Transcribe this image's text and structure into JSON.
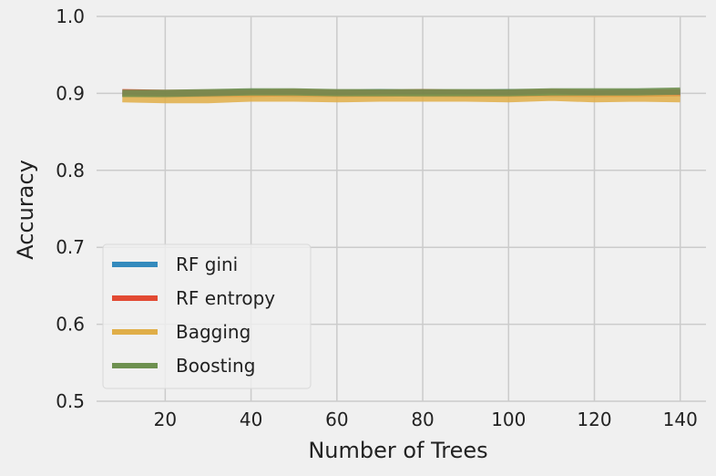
{
  "chart_data": {
    "type": "line",
    "title": "",
    "xlabel": "Number of Trees",
    "ylabel": "Accuracy",
    "xlim": [
      4,
      146
    ],
    "ylim": [
      0.5,
      1.0
    ],
    "xticks": [
      20,
      40,
      60,
      80,
      100,
      120,
      140
    ],
    "yticks": [
      0.5,
      0.6,
      0.7,
      0.8,
      0.9,
      1.0
    ],
    "grid": true,
    "legend_position": "lower-left",
    "x": [
      10,
      20,
      30,
      40,
      50,
      60,
      70,
      80,
      90,
      100,
      110,
      120,
      130,
      140
    ],
    "series": [
      {
        "name": "RF gini",
        "color": "#348abd",
        "values": [
          0.9,
          0.899,
          0.9,
          0.901,
          0.9,
          0.9,
          0.901,
          0.9,
          0.9,
          0.901,
          0.9,
          0.9,
          0.901,
          0.901
        ]
      },
      {
        "name": "RF entropy",
        "color": "#e24a33",
        "values": [
          0.901,
          0.9,
          0.9,
          0.9,
          0.901,
          0.9,
          0.9,
          0.901,
          0.9,
          0.9,
          0.901,
          0.9,
          0.9,
          0.901
        ]
      },
      {
        "name": "Bagging",
        "color": "#e0ae48",
        "values": [
          0.893,
          0.892,
          0.892,
          0.894,
          0.894,
          0.893,
          0.894,
          0.894,
          0.894,
          0.893,
          0.895,
          0.893,
          0.894,
          0.893
        ]
      },
      {
        "name": "Boosting",
        "color": "#6d904f",
        "values": [
          0.9,
          0.9,
          0.901,
          0.902,
          0.902,
          0.901,
          0.901,
          0.901,
          0.901,
          0.901,
          0.902,
          0.902,
          0.902,
          0.903
        ]
      }
    ]
  }
}
